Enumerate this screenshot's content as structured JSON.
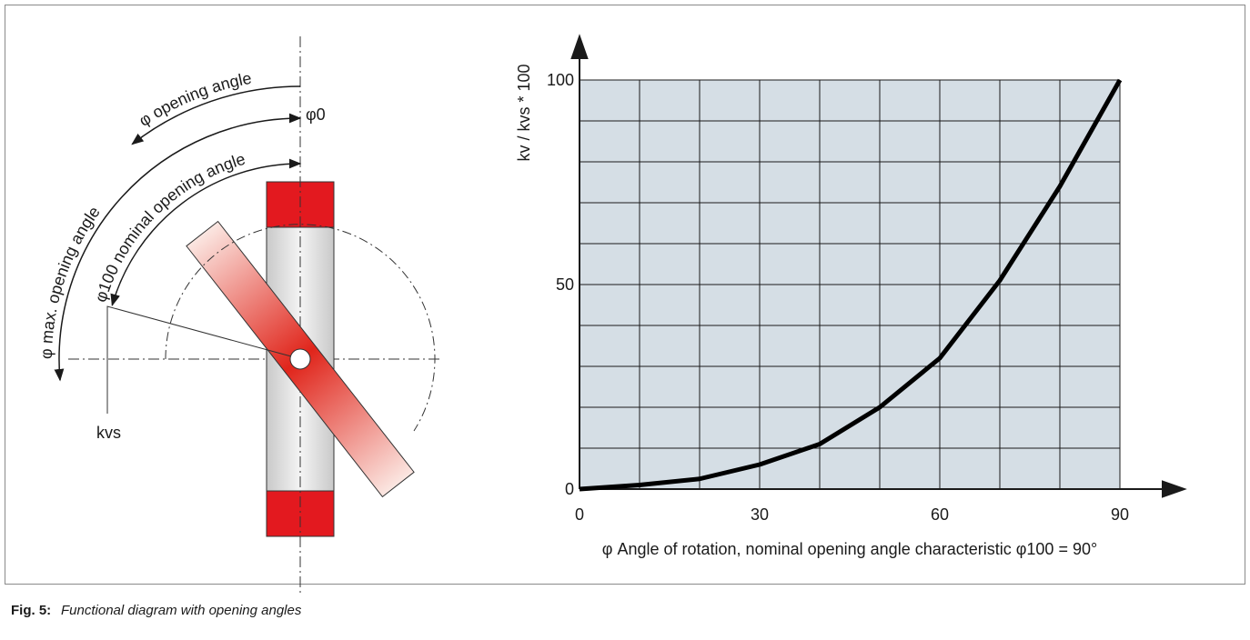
{
  "figure": {
    "label": "Fig. 5:",
    "caption": "Functional diagram with opening angles"
  },
  "diagram": {
    "labels": {
      "opening_angle": "φ opening angle",
      "max_opening_angle": "φ max. opening angle",
      "nominal_opening_angle": "φ100 nominal opening angle",
      "phi0": "φ0",
      "kvs": "kvs"
    }
  },
  "chart_data": {
    "type": "line",
    "y_label": "kv / kvs * 100",
    "x_label": "φ Angle of rotation, nominal opening angle characteristic  φ100 = 90°",
    "x": [
      0,
      10,
      20,
      30,
      40,
      50,
      60,
      70,
      80,
      90
    ],
    "series": [
      {
        "color": "#000000",
        "values": [
          0,
          1,
          2.5,
          6,
          11,
          20,
          32,
          51,
          74,
          100
        ]
      }
    ],
    "xlim": [
      0,
      90
    ],
    "ylim": [
      0,
      100
    ],
    "xticks": [
      0,
      30,
      60,
      90
    ],
    "yticks": [
      0,
      50,
      100
    ],
    "xgrid": [
      10,
      20,
      30,
      40,
      50,
      60,
      70,
      80,
      90
    ],
    "ygrid": [
      10,
      20,
      30,
      40,
      50,
      60,
      70,
      80,
      90,
      100
    ],
    "grid": true,
    "plot_background": "#d5dee5"
  }
}
